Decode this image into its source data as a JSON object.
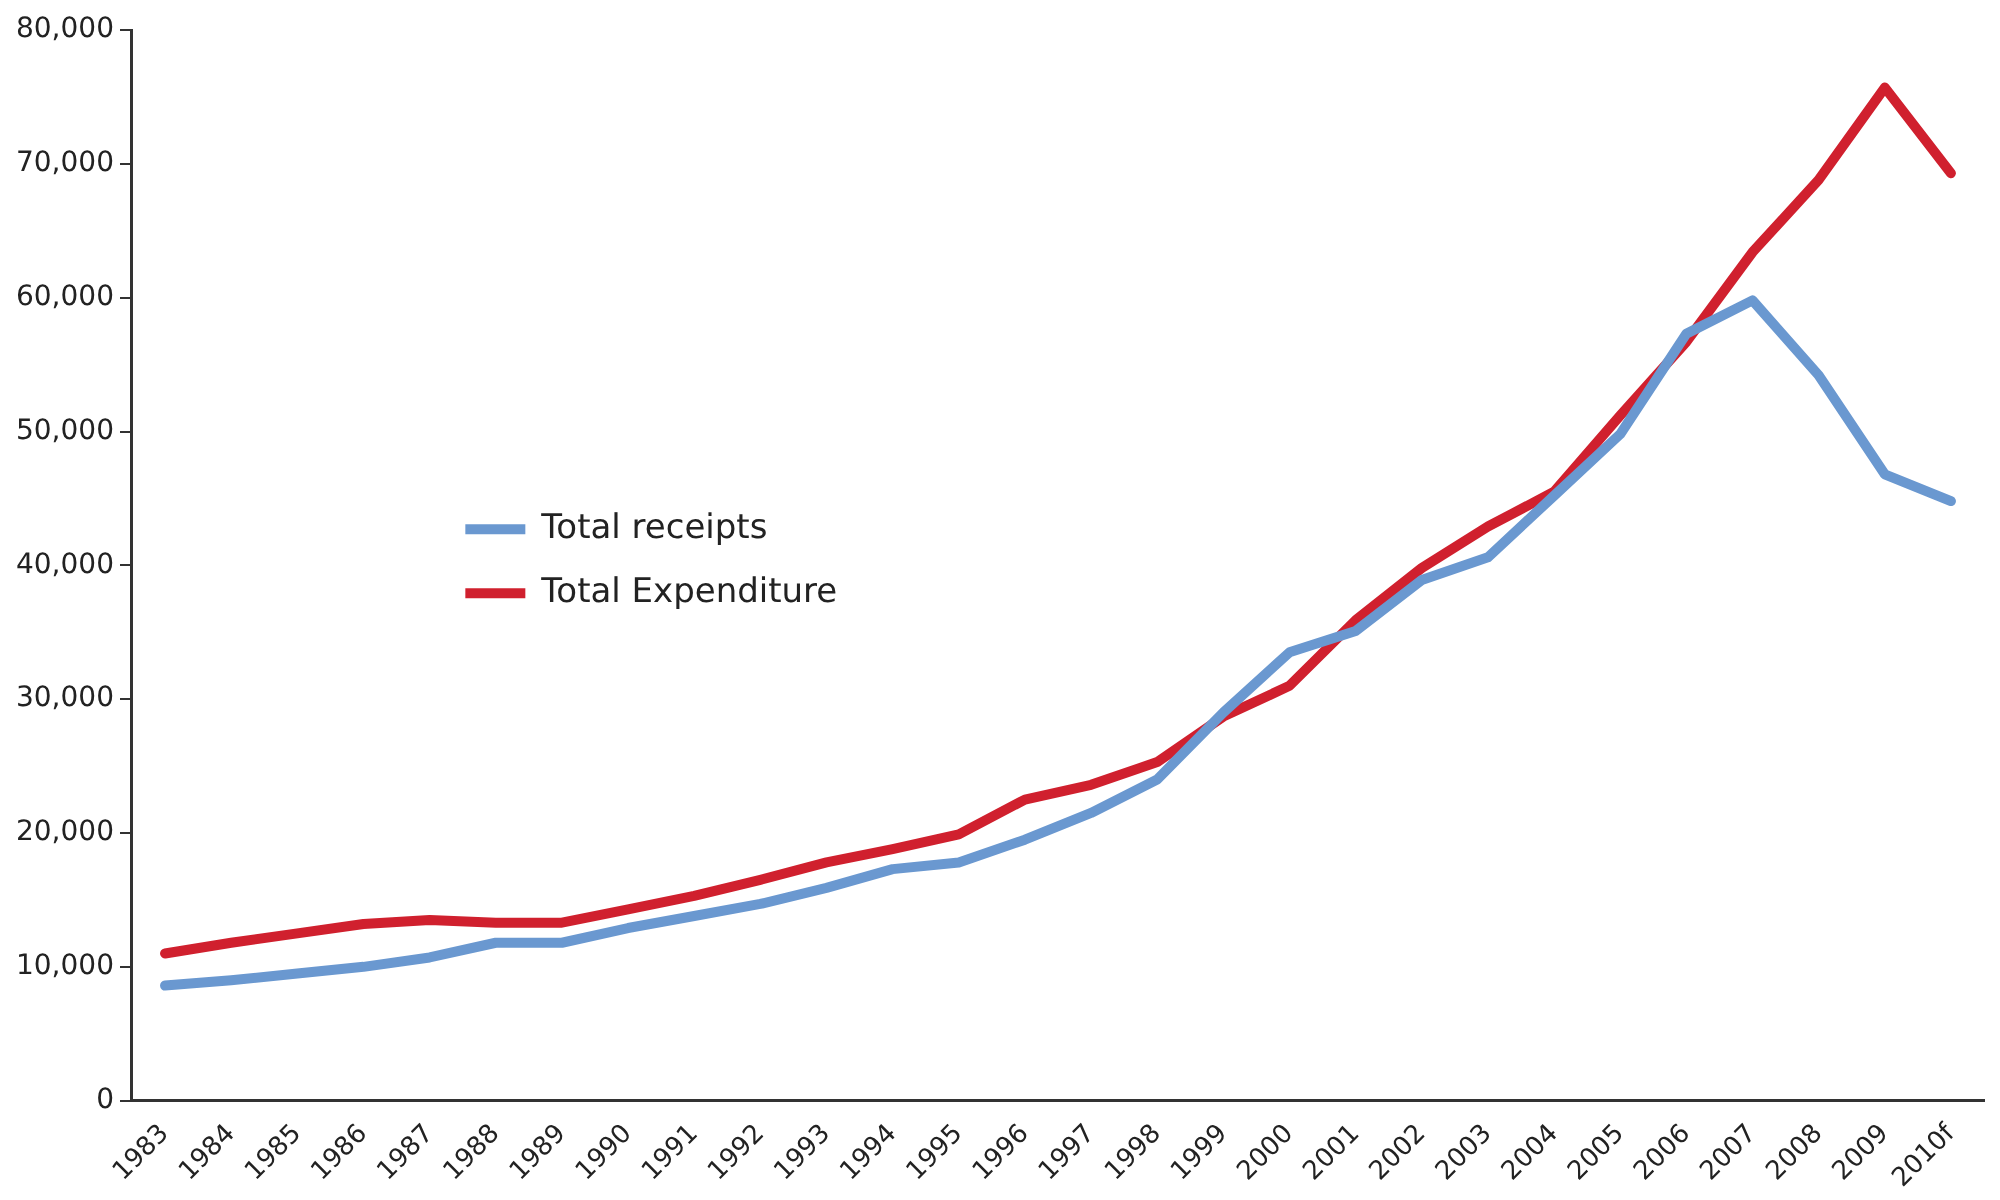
{
  "chart_data": {
    "type": "line",
    "categories": [
      "1983",
      "1984",
      "1985",
      "1986",
      "1987",
      "1988",
      "1989",
      "1990",
      "1991",
      "1992",
      "1993",
      "1994",
      "1995",
      "1996",
      "1997",
      "1998",
      "1999",
      "2000",
      "2001",
      "2002",
      "2003",
      "2004",
      "2005",
      "2006",
      "2007",
      "2008",
      "2009",
      "2010f"
    ],
    "series": [
      {
        "name": "Total receipts",
        "color": "#6a98d0",
        "values": [
          8600,
          9000,
          9500,
          10000,
          10700,
          11800,
          11800,
          12900,
          13800,
          14700,
          15900,
          17300,
          17800,
          19500,
          21500,
          24000,
          29000,
          33500,
          35100,
          38900,
          40600,
          45200,
          49800,
          57300,
          59800,
          54200,
          46800,
          44800
        ]
      },
      {
        "name": "Total Expenditure",
        "color": "#d0202e",
        "values": [
          11000,
          11800,
          12500,
          13200,
          13500,
          13300,
          13300,
          14300,
          15300,
          16500,
          17800,
          18800,
          19900,
          22500,
          23600,
          25300,
          28700,
          31000,
          35900,
          39800,
          42900,
          45500,
          51200,
          56700,
          63400,
          68800,
          75700,
          69300
        ]
      }
    ],
    "ylim": [
      0,
      80000
    ],
    "yticks": [
      {
        "value": 0,
        "label": "0"
      },
      {
        "value": 10000,
        "label": "10,000"
      },
      {
        "value": 20000,
        "label": "20,000"
      },
      {
        "value": 30000,
        "label": "30,000"
      },
      {
        "value": 40000,
        "label": "40,000"
      },
      {
        "value": 50000,
        "label": "50,000"
      },
      {
        "value": 60000,
        "label": "60,000"
      },
      {
        "value": 70000,
        "label": "70,000"
      },
      {
        "value": 80000,
        "label": "80,000"
      }
    ],
    "grid": false,
    "legend": "center left",
    "marker": "none",
    "line_style": "solid"
  }
}
